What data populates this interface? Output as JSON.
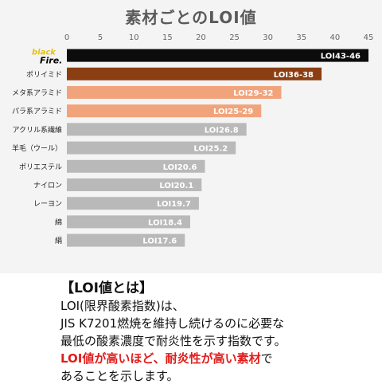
{
  "title": "素材ごとのLOI値",
  "chart_data": {
    "type": "bar",
    "orientation": "horizontal",
    "title": "素材ごとのLOI値",
    "xlim": [
      0,
      45
    ],
    "xticks": [
      0,
      5,
      10,
      15,
      20,
      25,
      30,
      35,
      40,
      45
    ],
    "categories": [
      "black Fire.",
      "ポリイミド",
      "メタ系アラミド",
      "パラ系アラミド",
      "アクリル系繊維",
      "羊毛（ウール）",
      "ポリエステル",
      "ナイロン",
      "レーヨン",
      "綿",
      "絹"
    ],
    "values": [
      45,
      38,
      32,
      29,
      26.8,
      25.2,
      20.6,
      20.1,
      19.7,
      18.4,
      17.6
    ],
    "labels": [
      "LOI43-46",
      "LOI36-38",
      "LOI29-32",
      "LOI25-29",
      "LOI26.8",
      "LOI25.2",
      "LOI20.6",
      "LOI20.1",
      "LOI19.7",
      "LOI18.4",
      "LOI17.6"
    ],
    "colors": [
      "#0c0c0c",
      "#8b3e12",
      "#f1a47c",
      "#f1a47c",
      "#b9b9b9",
      "#b9b9b9",
      "#b9b9b9",
      "#b9b9b9",
      "#b9b9b9",
      "#b9b9b9",
      "#b9b9b9"
    ],
    "grid": false,
    "logo": {
      "word1": "black",
      "word2": "Fire."
    }
  },
  "explanation": {
    "heading": "【LOI値とは】",
    "line1": "LOI(限界酸素指数)は、",
    "line2": "JIS K7201燃焼を維持し続けるのに必要な",
    "line3": "最低の酸素濃度で耐炎性を示す指数です。",
    "line4_red": "LOI値が高いほど、耐炎性が高い素材",
    "line4_black": "で",
    "line5": "あることを示します。"
  }
}
